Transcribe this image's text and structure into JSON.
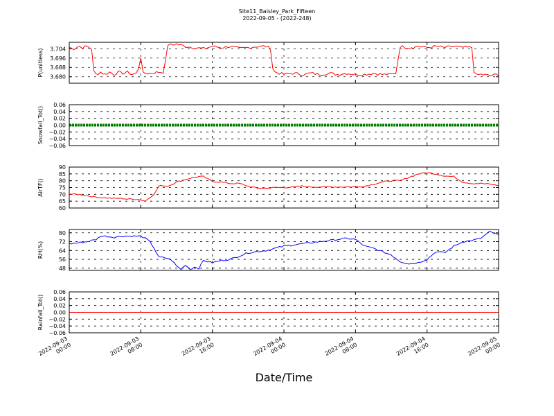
{
  "chart_data": {
    "type": "line",
    "title": "Site11_Baisley_Park_Fifteen",
    "subtitle": "2022-09-05 - (2022-248)",
    "xlabel": "Date/Time",
    "x_ticks": [
      [
        "2022-09-03",
        "00:00"
      ],
      [
        "2022-09-03",
        "08:00"
      ],
      [
        "2022-09-03",
        "16:00"
      ],
      [
        "2022-09-04",
        "00:00"
      ],
      [
        "2022-09-04",
        "08:00"
      ],
      [
        "2022-09-04",
        "16:00"
      ],
      [
        "2022-09-05",
        "00:00"
      ]
    ],
    "x_range_hours": [
      0,
      48
    ],
    "grid": true,
    "panels": [
      {
        "ylabel": "P(unitless)",
        "color": "#ff0000",
        "ylim": [
          3.6745,
          3.7095
        ],
        "yticks": [
          3.68,
          3.688,
          3.696,
          3.704
        ],
        "ytick_labels": [
          "3.680",
          "3.688",
          "3.696",
          "3.704"
        ],
        "series": [
          {
            "x": [
              0,
              0.5,
              1,
              1.5,
              2,
              2.5,
              2.7,
              3,
              3.5,
              4,
              4.5,
              5,
              5.5,
              6,
              6.5,
              7,
              7.5,
              7.7,
              7.9,
              8.2,
              9,
              10,
              10.5,
              10.7,
              11,
              12,
              13,
              14,
              15,
              16,
              17,
              18,
              19,
              20,
              21,
              22,
              22.5,
              22.8,
              23,
              24,
              25,
              26,
              27,
              28,
              29,
              30,
              31,
              32,
              33,
              34,
              35,
              36,
              36.5,
              37,
              38,
              39,
              40,
              41,
              42,
              43,
              44,
              45,
              45.3,
              46,
              47,
              48
            ],
            "values": [
              3.705,
              3.704,
              3.706,
              3.705,
              3.706,
              3.704,
              3.685,
              3.682,
              3.684,
              3.682,
              3.684,
              3.682,
              3.684,
              3.683,
              3.684,
              3.682,
              3.683,
              3.682,
              3.704,
              3.683,
              3.683,
              3.684,
              3.684,
              3.69,
              3.707,
              3.708,
              3.706,
              3.705,
              3.704,
              3.706,
              3.705,
              3.706,
              3.704,
              3.705,
              3.706,
              3.706,
              3.704,
              3.684,
              3.684,
              3.682,
              3.683,
              3.682,
              3.683,
              3.682,
              3.683,
              3.682,
              3.683,
              3.682,
              3.682,
              3.683,
              3.682,
              3.682,
              3.683,
              3.706,
              3.705,
              3.706,
              3.705,
              3.706,
              3.705,
              3.706,
              3.705,
              3.705,
              3.681,
              3.682,
              3.681,
              3.682
            ],
            "noise": 0.0012
          }
        ]
      },
      {
        "ylabel": "Snowfall_Tot()",
        "color": "#008000",
        "ylim": [
          -0.06,
          0.06
        ],
        "yticks": [
          -0.06,
          -0.04,
          -0.02,
          0.0,
          0.02,
          0.04,
          0.06
        ],
        "ytick_labels": [
          "−0.06",
          "−0.04",
          "−0.02",
          "0.00",
          "0.02",
          "0.04",
          "0.06"
        ],
        "series": [
          {
            "x": [
              0,
              48
            ],
            "values": [
              0.0,
              0.0
            ],
            "thick": true
          }
        ]
      },
      {
        "ylabel": "AirTF()",
        "color": "#ff0000",
        "ylim": [
          60,
          90
        ],
        "yticks": [
          60,
          65,
          70,
          75,
          80,
          85,
          90
        ],
        "ytick_labels": [
          "60",
          "65",
          "70",
          "75",
          "80",
          "85",
          "90"
        ],
        "series": [
          {
            "x": [
              0,
              1,
              2,
              3,
              4,
              5,
              6,
              6.5,
              7,
              7.5,
              8,
              8.5,
              9,
              9.5,
              10,
              10.5,
              11,
              12,
              13,
              14,
              14.5,
              15,
              16,
              17,
              18,
              19,
              20,
              21,
              22,
              23,
              24,
              25,
              26,
              27,
              28,
              29,
              30,
              31,
              32,
              33,
              34,
              35,
              36,
              37,
              38,
              39,
              40,
              41,
              42,
              43,
              44,
              45,
              46,
              47,
              48
            ],
            "values": [
              70,
              70,
              69,
              68,
              67.5,
              67,
              67,
              66.5,
              66.5,
              66.5,
              66,
              65,
              68,
              70,
              76,
              76.5,
              76,
              79,
              81,
              82.5,
              83,
              83,
              79.5,
              79,
              78,
              78,
              76,
              74.5,
              74.5,
              75,
              75,
              75.5,
              76,
              75.5,
              75.5,
              75.5,
              75.5,
              75.5,
              75.5,
              76,
              77.5,
              79,
              80,
              80,
              82.5,
              85,
              86,
              85,
              83.5,
              83,
              79,
              78,
              78,
              77.5,
              76.5
            ],
            "noise": 0.5
          }
        ]
      },
      {
        "ylabel": "RH(%)",
        "color": "#0000ff",
        "ylim": [
          46,
          83
        ],
        "yticks": [
          48,
          56,
          64,
          72,
          80
        ],
        "ytick_labels": [
          "48",
          "56",
          "64",
          "72",
          "80"
        ],
        "series": [
          {
            "x": [
              0,
              1,
              2,
              3,
              3.5,
              4,
              5,
              6,
              7,
              8,
              8.5,
              9,
              9.5,
              10,
              11,
              11.5,
              12,
              12.5,
              13,
              13.5,
              14,
              14.5,
              15,
              16,
              17,
              18,
              19,
              20,
              21,
              22,
              23,
              24,
              25,
              26,
              27,
              28,
              29,
              30,
              31,
              32,
              33,
              34,
              35,
              36,
              37,
              38,
              39,
              40,
              41,
              42,
              43,
              44,
              45,
              46,
              47,
              48
            ],
            "values": [
              70,
              71,
              72,
              74,
              77,
              77,
              76,
              77,
              77,
              77,
              75,
              72,
              66,
              58,
              57,
              55,
              50,
              47,
              51,
              47,
              49,
              48,
              55,
              53,
              55,
              56,
              59,
              62,
              63,
              64,
              66,
              68,
              69,
              70,
              71,
              72,
              73,
              74,
              75,
              74,
              68,
              66,
              63,
              60,
              54,
              52,
              53,
              56,
              63,
              62,
              68,
              72,
              73,
              75,
              81,
              78
            ],
            "noise": 0.7
          }
        ]
      },
      {
        "ylabel": "Rainfall_Tot()",
        "color": "#ff0000",
        "ylim": [
          -0.06,
          0.06
        ],
        "yticks": [
          -0.06,
          -0.04,
          -0.02,
          0.0,
          0.02,
          0.04,
          0.06
        ],
        "ytick_labels": [
          "−0.06",
          "−0.04",
          "−0.02",
          "0.00",
          "0.02",
          "0.04",
          "0.06"
        ],
        "series": [
          {
            "x": [
              0,
              48
            ],
            "values": [
              0.0,
              0.0
            ]
          }
        ]
      }
    ]
  }
}
